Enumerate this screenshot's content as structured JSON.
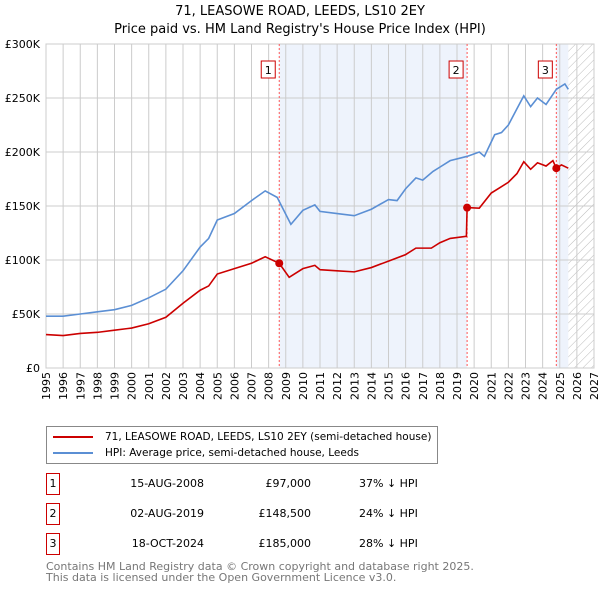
{
  "title": "71, LEASOWE ROAD, LEEDS, LS10 2EY",
  "subtitle": "Price paid vs. HM Land Registry's House Price Index (HPI)",
  "chart_data": {
    "type": "line",
    "xlim": [
      1995,
      2027
    ],
    "ylim": [
      0,
      300000
    ],
    "y_ticks": [
      {
        "v": 0,
        "label": "£0"
      },
      {
        "v": 50000,
        "label": "£50K"
      },
      {
        "v": 100000,
        "label": "£100K"
      },
      {
        "v": 150000,
        "label": "£150K"
      },
      {
        "v": 200000,
        "label": "£200K"
      },
      {
        "v": 250000,
        "label": "£250K"
      },
      {
        "v": 300000,
        "label": "£300K"
      }
    ],
    "x_ticks": [
      "1995",
      "1996",
      "1997",
      "1998",
      "1999",
      "2000",
      "2001",
      "2002",
      "2003",
      "2004",
      "2005",
      "2006",
      "2007",
      "2008",
      "2009",
      "2010",
      "2011",
      "2012",
      "2013",
      "2014",
      "2015",
      "2016",
      "2017",
      "2018",
      "2019",
      "2020",
      "2021",
      "2022",
      "2023",
      "2024",
      "2025",
      "2026",
      "2027"
    ],
    "shaded_periods": [
      [
        2008.62,
        2019.59
      ],
      [
        2024.8,
        2025.5
      ]
    ],
    "forecast_hatch_from": 2025.5,
    "series": [
      {
        "name": "71, LEASOWE ROAD, LEEDS, LS10 2EY (semi-detached house)",
        "color": "#cc0000",
        "x": [
          1995,
          1996,
          1997,
          1998,
          1999,
          2000,
          2001,
          2002,
          2003,
          2004,
          2004.5,
          2005,
          2006,
          2007,
          2007.8,
          2008.62,
          2009.2,
          2010,
          2010.7,
          2011,
          2012,
          2013,
          2014,
          2015,
          2016,
          2016.6,
          2017.5,
          2018,
          2018.6,
          2019.55,
          2019.59,
          2020.3,
          2021,
          2021.5,
          2022,
          2022.5,
          2022.9,
          2023.3,
          2023.7,
          2024.2,
          2024.6,
          2024.8,
          2025.1,
          2025.5
        ],
        "y": [
          31000,
          30000,
          32000,
          33000,
          35000,
          37000,
          41000,
          47000,
          60000,
          72000,
          76000,
          87000,
          92000,
          97000,
          103000,
          97000,
          84000,
          92000,
          95000,
          91000,
          90000,
          89000,
          93000,
          99000,
          105000,
          111000,
          111000,
          116000,
          120000,
          122000,
          148500,
          148000,
          162000,
          167000,
          172000,
          180000,
          191000,
          184000,
          190000,
          187000,
          192000,
          185000,
          188000,
          185000
        ]
      },
      {
        "name": "HPI: Average price, semi-detached house, Leeds",
        "color": "#5b8fd4",
        "x": [
          1995,
          1996,
          1997,
          1998,
          1999,
          2000,
          2001,
          2002,
          2003,
          2004,
          2004.5,
          2005,
          2006,
          2007,
          2007.8,
          2008.5,
          2009.3,
          2010,
          2010.7,
          2011,
          2012,
          2013,
          2014,
          2015,
          2015.5,
          2016,
          2016.6,
          2017,
          2017.6,
          2018,
          2018.6,
          2019.6,
          2020.3,
          2020.6,
          2021.2,
          2021.6,
          2022,
          2022.5,
          2022.9,
          2023.3,
          2023.7,
          2024.2,
          2024.8,
          2025.3,
          2025.5
        ],
        "y": [
          48000,
          48000,
          50000,
          52000,
          54000,
          58000,
          65000,
          73000,
          90000,
          112000,
          120000,
          137000,
          143000,
          155000,
          164000,
          158000,
          133000,
          146000,
          151000,
          145000,
          143000,
          141000,
          147000,
          156000,
          155000,
          166000,
          176000,
          174000,
          182000,
          186000,
          192000,
          196000,
          200000,
          196000,
          216000,
          218000,
          225000,
          240000,
          252000,
          242000,
          250000,
          244000,
          258000,
          263000,
          258000
        ]
      }
    ],
    "markers": [
      {
        "label": "1",
        "x": 2008.62,
        "y": 97000
      },
      {
        "label": "2",
        "x": 2019.59,
        "y": 148500
      },
      {
        "label": "3",
        "x": 2024.8,
        "y": 185000
      }
    ]
  },
  "legend": {
    "property": "71, LEASOWE ROAD, LEEDS, LS10 2EY (semi-detached house)",
    "hpi": "HPI: Average price, semi-detached house, Leeds"
  },
  "transactions": [
    {
      "num": "1",
      "date": "15-AUG-2008",
      "price": "£97,000",
      "hpi": "37% ↓ HPI"
    },
    {
      "num": "2",
      "date": "02-AUG-2019",
      "price": "£148,500",
      "hpi": "24% ↓ HPI"
    },
    {
      "num": "3",
      "date": "18-OCT-2024",
      "price": "£185,000",
      "hpi": "28% ↓ HPI"
    }
  ],
  "footer": {
    "line1": "Contains HM Land Registry data © Crown copyright and database right 2025.",
    "line2": "This data is licensed under the Open Government Licence v3.0."
  }
}
